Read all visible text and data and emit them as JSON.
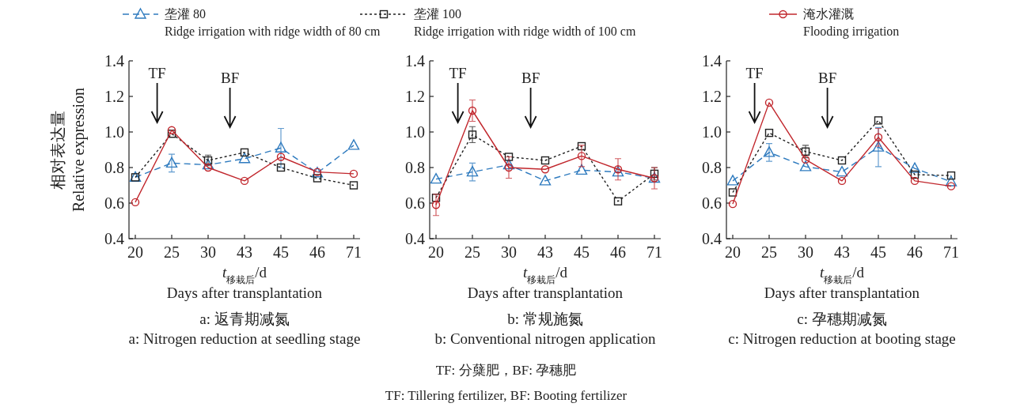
{
  "chart_data": [
    {
      "type": "line",
      "title": "a: 返青期减氮",
      "subtitle": "a: Nitrogen reduction at seedling stage",
      "xlabel": "*t*$_{移栽后}$/d\nDays after transplantation",
      "ylabel": "相对表达量\nRelative expression",
      "categories": [
        "20",
        "25",
        "30",
        "43",
        "45",
        "46",
        "71"
      ],
      "ylim": [
        0.4,
        1.4
      ],
      "yticks": [
        {
          "value": 0.4,
          "label": "0.4"
        },
        {
          "value": 0.6,
          "label": "0.6"
        },
        {
          "value": 0.8,
          "label": "0.8"
        },
        {
          "value": 1.0,
          "label": "1.0"
        },
        {
          "value": 1.2,
          "label": "1.2"
        },
        {
          "value": 1.4,
          "label": "1.4"
        }
      ],
      "legend": "top",
      "annotations": [
        "TF",
        "BF"
      ],
      "series": [
        {
          "name": "垄灌 80\nRidge irrigation with ridge width of 80 cm",
          "color": "#2f7bbf",
          "marker": "triangle",
          "line_style": "dashed",
          "values": [
            0.745,
            0.825,
            0.815,
            0.85,
            0.91,
            0.77,
            0.925
          ],
          "errors": [
            null,
            0.05,
            null,
            null,
            0.11,
            null,
            null
          ]
        },
        {
          "name": "垄灌 100\nRidge irrigation with ridge width of 100 cm",
          "color": "#222222",
          "marker": "square",
          "line_style": "dotted",
          "values": [
            0.745,
            0.99,
            0.84,
            0.885,
            0.8,
            0.74,
            0.7
          ],
          "errors": [
            null,
            null,
            0.03,
            null,
            null,
            null,
            null
          ]
        },
        {
          "name": "淹水灌溉\nFlooding irrigation",
          "color": "#c1272d",
          "marker": "circle",
          "line_style": "solid",
          "values": [
            0.605,
            1.01,
            0.8,
            0.725,
            0.86,
            0.775,
            0.765
          ],
          "errors": [
            null,
            null,
            null,
            null,
            null,
            null,
            null
          ]
        }
      ]
    },
    {
      "type": "line",
      "title": "b: 常规施氮",
      "subtitle": "b: Conventional nitrogen application",
      "xlabel": "*t*$_{移栽后}$/d\nDays after transplantation",
      "categories": [
        "20",
        "25",
        "30",
        "43",
        "45",
        "46",
        "71"
      ],
      "ylim": [
        0.4,
        1.4
      ],
      "yticks": [
        {
          "value": 0.4,
          "label": "0.4"
        },
        {
          "value": 0.6,
          "label": "0.6"
        },
        {
          "value": 0.8,
          "label": "0.8"
        },
        {
          "value": 1.0,
          "label": "1.0"
        },
        {
          "value": 1.2,
          "label": "1.2"
        },
        {
          "value": 1.4,
          "label": "1.4"
        }
      ],
      "annotations": [
        "TF",
        "BF",
        "TF: 分蘖肥，BF: 孕穗肥",
        "TF: Tillering fertilizer, BF: Booting fertilizer"
      ],
      "series": [
        {
          "color": "#2f7bbf",
          "marker": "triangle",
          "line_style": "dashed",
          "values": [
            0.735,
            0.775,
            0.815,
            0.725,
            0.785,
            0.775,
            0.74
          ],
          "errors": [
            null,
            0.05,
            null,
            null,
            null,
            null,
            null
          ]
        },
        {
          "color": "#222222",
          "marker": "square",
          "line_style": "dotted",
          "values": [
            0.63,
            0.985,
            0.86,
            0.84,
            0.92,
            0.61,
            0.765
          ],
          "errors": [
            null,
            0.045,
            null,
            null,
            null,
            null,
            0.035
          ]
        },
        {
          "color": "#c1272d",
          "marker": "circle",
          "line_style": "solid",
          "values": [
            0.59,
            1.12,
            0.8,
            0.79,
            0.865,
            0.79,
            0.74
          ],
          "errors": [
            0.06,
            0.06,
            0.06,
            null,
            0.06,
            0.06,
            0.06
          ]
        }
      ]
    },
    {
      "type": "line",
      "title": "c: 孕穗期减氮",
      "subtitle": "c: Nitrogen reduction at booting stage",
      "xlabel": "*t*$_{移栽后}$/d\nDays after transplantation",
      "categories": [
        "20",
        "25",
        "30",
        "43",
        "45",
        "46",
        "71"
      ],
      "ylim": [
        0.4,
        1.4
      ],
      "yticks": [
        {
          "value": 0.4,
          "label": "0.4"
        },
        {
          "value": 0.6,
          "label": "0.6"
        },
        {
          "value": 0.8,
          "label": "0.8"
        },
        {
          "value": 1.0,
          "label": "1.0"
        },
        {
          "value": 1.2,
          "label": "1.2"
        },
        {
          "value": 1.4,
          "label": "1.4"
        }
      ],
      "annotations": [
        "TF",
        "BF"
      ],
      "series": [
        {
          "color": "#2f7bbf",
          "marker": "triangle",
          "line_style": "dashed",
          "values": [
            0.725,
            0.885,
            0.805,
            0.775,
            0.915,
            0.795,
            0.72
          ],
          "errors": [
            null,
            0.05,
            null,
            null,
            0.11,
            null,
            null
          ]
        },
        {
          "color": "#222222",
          "marker": "square",
          "line_style": "dotted",
          "values": [
            0.66,
            0.995,
            0.89,
            0.84,
            1.065,
            0.76,
            0.755
          ],
          "errors": [
            null,
            null,
            0.035,
            null,
            null,
            null,
            null
          ]
        },
        {
          "color": "#c1272d",
          "marker": "circle",
          "line_style": "solid",
          "values": [
            0.595,
            1.165,
            0.845,
            0.725,
            0.97,
            0.725,
            0.695
          ],
          "errors": [
            null,
            null,
            null,
            null,
            0.05,
            null,
            null
          ]
        }
      ]
    }
  ]
}
